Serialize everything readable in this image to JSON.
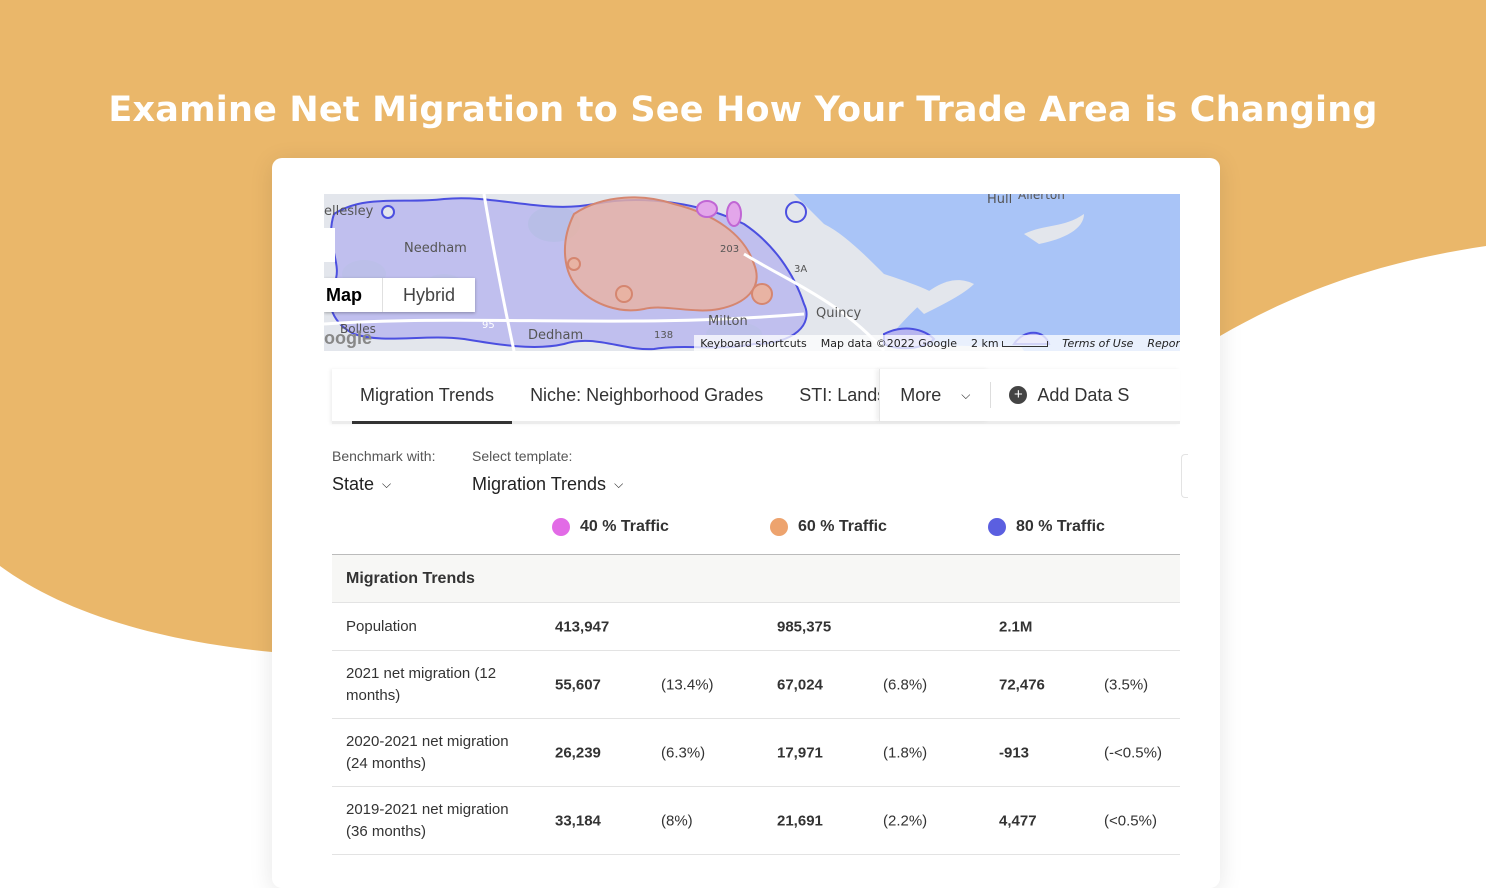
{
  "headline": "Examine Net Migration to See How Your Trade Area is Changing",
  "colors": {
    "background_orange": "#EAB76A",
    "traffic_40": "#E26BE6",
    "traffic_60": "#EDA36E",
    "traffic_80": "#5B5FE0"
  },
  "map": {
    "places": [
      "ellesley",
      "Needham",
      "Dedham",
      "Milton",
      "Quincy",
      "Hull",
      "Allerton",
      "Bolles"
    ],
    "route_labels": [
      "203",
      "3A",
      "95",
      "138"
    ],
    "toggle": {
      "map": "Map",
      "hybrid": "Hybrid"
    },
    "logo_text": "oogle",
    "attribution": {
      "shortcuts": "Keyboard shortcuts",
      "data": "Map data ©2022 Google",
      "scale": "2 km",
      "terms": "Terms of Use",
      "report": "Repor"
    }
  },
  "tabs": [
    {
      "label": "Migration Trends"
    },
    {
      "label": "Niche: Neighborhood Grades"
    },
    {
      "label": "STI: Landsca"
    }
  ],
  "more_label": "More",
  "add_label": "Add Data S",
  "controls": {
    "benchmark_label": "Benchmark with:",
    "benchmark_value": "State",
    "template_label": "Select template:",
    "template_value": "Migration Trends"
  },
  "legend": [
    {
      "label": "40 % Traffic"
    },
    {
      "label": "60 % Traffic"
    },
    {
      "label": "80 % Traffic"
    }
  ],
  "table": {
    "section_title": "Migration Trends",
    "rows": [
      {
        "label": "Population",
        "v1": "413,947",
        "p1": "",
        "v2": "985,375",
        "p2": "",
        "v3": "2.1M",
        "p3": ""
      },
      {
        "label": "2021 net migration (12 months)",
        "v1": "55,607",
        "p1": "(13.4%)",
        "v2": "67,024",
        "p2": "(6.8%)",
        "v3": "72,476",
        "p3": "(3.5%)"
      },
      {
        "label": "2020-2021 net migration (24 months)",
        "v1": "26,239",
        "p1": "(6.3%)",
        "v2": "17,971",
        "p2": "(1.8%)",
        "v3": "-913",
        "p3": "(-<0.5%)"
      },
      {
        "label": "2019-2021 net migration (36 months)",
        "v1": "33,184",
        "p1": "(8%)",
        "v2": "21,691",
        "p2": "(2.2%)",
        "v3": "4,477",
        "p3": "(<0.5%)"
      }
    ]
  }
}
